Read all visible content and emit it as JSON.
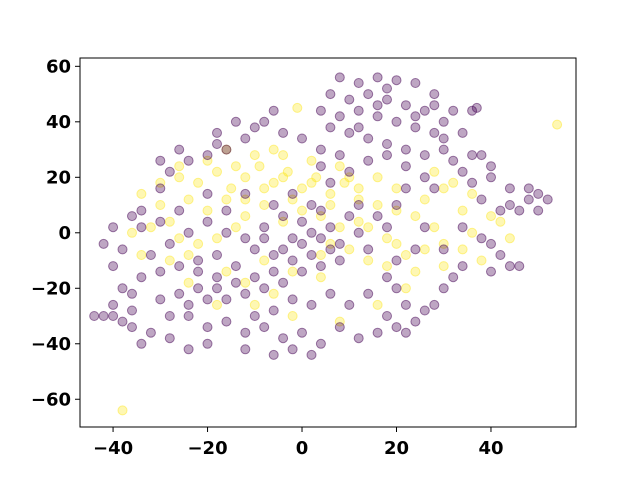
{
  "chart_data": {
    "type": "scatter",
    "title": "",
    "xlabel": "",
    "ylabel": "",
    "xlim": [
      -47,
      58
    ],
    "ylim": [
      -70,
      63
    ],
    "xticks": [
      -40,
      -20,
      0,
      20,
      40
    ],
    "yticks": [
      -60,
      -40,
      -20,
      0,
      20,
      40,
      60
    ],
    "xtick_labels": [
      "−40",
      "−20",
      "0",
      "20",
      "40"
    ],
    "ytick_labels": [
      "−60",
      "−40",
      "−20",
      "0",
      "20",
      "40",
      "60"
    ],
    "grid": false,
    "legend": "none",
    "point_alpha": 0.35,
    "series": [
      {
        "color": "#fde725",
        "points": [
          [
            -38,
            -64
          ],
          [
            54,
            39
          ],
          [
            -1,
            45
          ],
          [
            -26,
            20
          ],
          [
            -22,
            18
          ],
          [
            -18,
            22
          ],
          [
            -15,
            16
          ],
          [
            -12,
            20
          ],
          [
            -9,
            24
          ],
          [
            -6,
            18
          ],
          [
            -3,
            22
          ],
          [
            0,
            16
          ],
          [
            3,
            20
          ],
          [
            6,
            14
          ],
          [
            9,
            18
          ],
          [
            -24,
            12
          ],
          [
            -20,
            8
          ],
          [
            -16,
            12
          ],
          [
            -12,
            6
          ],
          [
            -8,
            10
          ],
          [
            -4,
            4
          ],
          [
            0,
            8
          ],
          [
            4,
            6
          ],
          [
            8,
            2
          ],
          [
            -28,
            4
          ],
          [
            -30,
            10
          ],
          [
            -10,
            28
          ],
          [
            -4,
            28
          ],
          [
            2,
            26
          ],
          [
            8,
            24
          ],
          [
            12,
            12
          ],
          [
            16,
            10
          ],
          [
            20,
            8
          ],
          [
            24,
            6
          ],
          [
            28,
            2
          ],
          [
            30,
            -4
          ],
          [
            26,
            -6
          ],
          [
            22,
            -8
          ],
          [
            18,
            -12
          ],
          [
            14,
            -10
          ],
          [
            10,
            -6
          ],
          [
            6,
            -4
          ],
          [
            -14,
            2
          ],
          [
            -18,
            -2
          ],
          [
            -22,
            -4
          ],
          [
            -26,
            -2
          ],
          [
            -8,
            -10
          ],
          [
            -2,
            -14
          ],
          [
            4,
            -16
          ],
          [
            -6,
            -22
          ],
          [
            -12,
            -18
          ],
          [
            -16,
            -14
          ],
          [
            26,
            12
          ],
          [
            30,
            16
          ],
          [
            34,
            8
          ],
          [
            36,
            0
          ],
          [
            18,
            -2
          ],
          [
            12,
            4
          ],
          [
            -20,
            26
          ],
          [
            -16,
            30
          ],
          [
            -32,
            2
          ],
          [
            -34,
            -8
          ],
          [
            -26,
            24
          ],
          [
            -6,
            30
          ],
          [
            10,
            20
          ],
          [
            32,
            18
          ],
          [
            40,
            6
          ],
          [
            34,
            -6
          ],
          [
            22,
            -20
          ],
          [
            16,
            -26
          ],
          [
            8,
            -32
          ],
          [
            -2,
            -30
          ],
          [
            -10,
            -26
          ],
          [
            -18,
            -26
          ],
          [
            -24,
            -18
          ],
          [
            -28,
            -10
          ],
          [
            -34,
            14
          ],
          [
            -30,
            18
          ],
          [
            -12,
            12
          ],
          [
            -2,
            12
          ],
          [
            6,
            10
          ],
          [
            14,
            2
          ],
          [
            20,
            -4
          ],
          [
            24,
            -14
          ],
          [
            28,
            22
          ],
          [
            36,
            14
          ],
          [
            42,
            4
          ],
          [
            44,
            -2
          ],
          [
            38,
            -10
          ],
          [
            30,
            -12
          ],
          [
            -14,
            24
          ],
          [
            -8,
            16
          ],
          [
            -4,
            20
          ],
          [
            2,
            18
          ],
          [
            12,
            16
          ],
          [
            16,
            20
          ],
          [
            20,
            16
          ],
          [
            -36,
            0
          ],
          [
            -24,
            -8
          ],
          [
            4,
            -8
          ]
        ]
      },
      {
        "color": "#440154",
        "points": [
          [
            8,
            56
          ],
          [
            12,
            54
          ],
          [
            16,
            56
          ],
          [
            20,
            55
          ],
          [
            24,
            54
          ],
          [
            28,
            50
          ],
          [
            6,
            50
          ],
          [
            10,
            48
          ],
          [
            14,
            50
          ],
          [
            18,
            48
          ],
          [
            22,
            46
          ],
          [
            26,
            44
          ],
          [
            4,
            44
          ],
          [
            8,
            42
          ],
          [
            12,
            44
          ],
          [
            16,
            42
          ],
          [
            20,
            40
          ],
          [
            24,
            38
          ],
          [
            28,
            36
          ],
          [
            6,
            38
          ],
          [
            10,
            36
          ],
          [
            14,
            34
          ],
          [
            18,
            32
          ],
          [
            22,
            30
          ],
          [
            26,
            28
          ],
          [
            30,
            40
          ],
          [
            34,
            36
          ],
          [
            30,
            30
          ],
          [
            36,
            28
          ],
          [
            40,
            24
          ],
          [
            36,
            44
          ],
          [
            37,
            45
          ],
          [
            -8,
            40
          ],
          [
            -4,
            36
          ],
          [
            0,
            34
          ],
          [
            4,
            30
          ],
          [
            -12,
            34
          ],
          [
            -16,
            30
          ],
          [
            -20,
            28
          ],
          [
            -24,
            26
          ],
          [
            -28,
            22
          ],
          [
            -30,
            16
          ],
          [
            -36,
            6
          ],
          [
            -40,
            2
          ],
          [
            -42,
            -4
          ],
          [
            -40,
            -12
          ],
          [
            -38,
            -20
          ],
          [
            -36,
            -28
          ],
          [
            -40,
            -30
          ],
          [
            -42,
            -30
          ],
          [
            -36,
            -34
          ],
          [
            -32,
            -36
          ],
          [
            -28,
            -30
          ],
          [
            -30,
            -24
          ],
          [
            -26,
            -22
          ],
          [
            -24,
            -26
          ],
          [
            -22,
            -20
          ],
          [
            -20,
            -24
          ],
          [
            -18,
            -20
          ],
          [
            -16,
            -24
          ],
          [
            -14,
            -18
          ],
          [
            -12,
            -22
          ],
          [
            -10,
            -16
          ],
          [
            -8,
            -20
          ],
          [
            -6,
            -14
          ],
          [
            -4,
            -18
          ],
          [
            -2,
            -10
          ],
          [
            0,
            -14
          ],
          [
            2,
            -8
          ],
          [
            4,
            -12
          ],
          [
            6,
            -6
          ],
          [
            8,
            -10
          ],
          [
            -24,
            -30
          ],
          [
            -20,
            -34
          ],
          [
            -16,
            -32
          ],
          [
            -12,
            -36
          ],
          [
            -8,
            -34
          ],
          [
            -4,
            -38
          ],
          [
            0,
            -36
          ],
          [
            4,
            -40
          ],
          [
            8,
            -34
          ],
          [
            12,
            -38
          ],
          [
            -20,
            -40
          ],
          [
            -12,
            -42
          ],
          [
            -6,
            -44
          ],
          [
            -2,
            -42
          ],
          [
            2,
            -44
          ],
          [
            -22,
            -10
          ],
          [
            -18,
            -8
          ],
          [
            -14,
            -12
          ],
          [
            -10,
            -6
          ],
          [
            -6,
            -8
          ],
          [
            -2,
            -2
          ],
          [
            2,
            0
          ],
          [
            6,
            2
          ],
          [
            -4,
            6
          ],
          [
            0,
            4
          ],
          [
            4,
            8
          ],
          [
            -8,
            2
          ],
          [
            -12,
            -2
          ],
          [
            -16,
            0
          ],
          [
            -20,
            4
          ],
          [
            -24,
            0
          ],
          [
            -28,
            -4
          ],
          [
            -32,
            -8
          ],
          [
            -34,
            -16
          ],
          [
            -30,
            -14
          ],
          [
            -26,
            -12
          ],
          [
            -22,
            -14
          ],
          [
            -18,
            -16
          ],
          [
            20,
            -34
          ],
          [
            22,
            -36
          ],
          [
            24,
            -32
          ],
          [
            18,
            -30
          ],
          [
            16,
            -36
          ],
          [
            26,
            -28
          ],
          [
            28,
            -26
          ],
          [
            30,
            -20
          ],
          [
            32,
            -16
          ],
          [
            34,
            -12
          ],
          [
            30,
            -6
          ],
          [
            34,
            2
          ],
          [
            38,
            -2
          ],
          [
            40,
            -4
          ],
          [
            42,
            -8
          ],
          [
            44,
            -12
          ],
          [
            46,
            -12
          ],
          [
            42,
            8
          ],
          [
            44,
            10
          ],
          [
            46,
            8
          ],
          [
            48,
            12
          ],
          [
            50,
            14
          ],
          [
            52,
            12
          ],
          [
            48,
            16
          ],
          [
            44,
            16
          ],
          [
            50,
            8
          ],
          [
            38,
            12
          ],
          [
            36,
            18
          ],
          [
            40,
            20
          ],
          [
            26,
            20
          ],
          [
            22,
            16
          ],
          [
            20,
            10
          ],
          [
            16,
            6
          ],
          [
            12,
            0
          ],
          [
            14,
            -6
          ],
          [
            18,
            -16
          ],
          [
            20,
            -20
          ],
          [
            14,
            -22
          ],
          [
            10,
            -26
          ],
          [
            6,
            -22
          ],
          [
            2,
            -26
          ],
          [
            -2,
            -24
          ],
          [
            -6,
            -28
          ],
          [
            -10,
            -30
          ],
          [
            26,
            2
          ],
          [
            24,
            -6
          ],
          [
            22,
            24
          ],
          [
            18,
            28
          ],
          [
            14,
            26
          ],
          [
            10,
            22
          ],
          [
            6,
            18
          ],
          [
            2,
            10
          ],
          [
            -2,
            14
          ],
          [
            -6,
            10
          ],
          [
            8,
            28
          ],
          [
            4,
            24
          ],
          [
            -10,
            38
          ],
          [
            -6,
            44
          ],
          [
            -14,
            40
          ],
          [
            -18,
            36
          ],
          [
            -26,
            8
          ],
          [
            -30,
            4
          ],
          [
            -34,
            2
          ],
          [
            -38,
            -6
          ],
          [
            -40,
            -26
          ],
          [
            -44,
            -30
          ],
          [
            -38,
            -32
          ],
          [
            -34,
            -40
          ],
          [
            -28,
            -38
          ],
          [
            -24,
            -42
          ],
          [
            16,
            46
          ],
          [
            18,
            52
          ],
          [
            12,
            38
          ],
          [
            24,
            42
          ],
          [
            28,
            46
          ],
          [
            32,
            44
          ],
          [
            30,
            34
          ],
          [
            32,
            26
          ],
          [
            34,
            22
          ],
          [
            28,
            16
          ],
          [
            -8,
            -2
          ],
          [
            -4,
            -6
          ],
          [
            0,
            -4
          ],
          [
            4,
            -2
          ],
          [
            8,
            -4
          ],
          [
            10,
            6
          ],
          [
            12,
            10
          ],
          [
            -16,
            8
          ],
          [
            -12,
            14
          ],
          [
            -20,
            14
          ],
          [
            -30,
            26
          ],
          [
            -26,
            30
          ],
          [
            -18,
            32
          ],
          [
            40,
            -14
          ],
          [
            38,
            28
          ],
          [
            -34,
            8
          ],
          [
            -36,
            -22
          ],
          [
            22,
            -26
          ],
          [
            20,
            -10
          ],
          [
            18,
            2
          ]
        ]
      }
    ]
  }
}
